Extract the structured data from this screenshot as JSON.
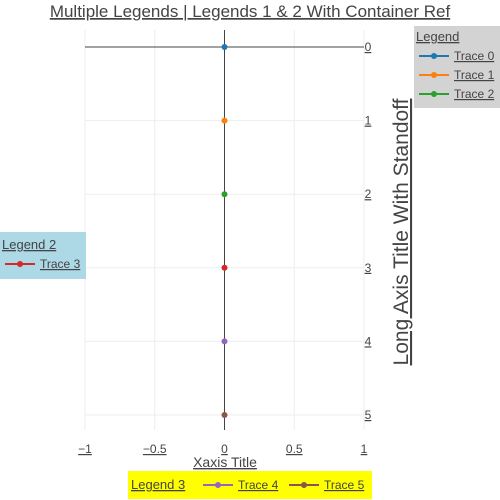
{
  "title": "Multiple Legends | Legends 1 & 2 With Container Ref",
  "chart_data": {
    "type": "scatter",
    "xlabel": "Xaxis Title",
    "ylabel": "Long Axis Title With Standoff",
    "xlim": [
      -1,
      1
    ],
    "ylim": [
      5,
      0
    ],
    "y_reversed": true,
    "y_axis_side": "right",
    "grid": true,
    "x_ticks": [
      {
        "value": -1,
        "label": "−1"
      },
      {
        "value": -0.5,
        "label": "−0.5"
      },
      {
        "value": 0,
        "label": "0"
      },
      {
        "value": 0.5,
        "label": "0.5"
      },
      {
        "value": 1,
        "label": "1"
      }
    ],
    "y_ticks": [
      {
        "value": 0,
        "label": "0"
      },
      {
        "value": 1,
        "label": "1"
      },
      {
        "value": 2,
        "label": "2"
      },
      {
        "value": 3,
        "label": "3"
      },
      {
        "value": 4,
        "label": "4"
      },
      {
        "value": 5,
        "label": "5"
      }
    ],
    "series": [
      {
        "name": "Trace 0",
        "color": "#1f77b4",
        "legend": "legend1",
        "x": [
          0
        ],
        "y": [
          0
        ]
      },
      {
        "name": "Trace 1",
        "color": "#ff7f0e",
        "legend": "legend1",
        "x": [
          0
        ],
        "y": [
          1
        ]
      },
      {
        "name": "Trace 2",
        "color": "#2ca02c",
        "legend": "legend1",
        "x": [
          0
        ],
        "y": [
          2
        ]
      },
      {
        "name": "Trace 3",
        "color": "#d62728",
        "legend": "legend2",
        "x": [
          0
        ],
        "y": [
          3
        ]
      },
      {
        "name": "Trace 4",
        "color": "#9467bd",
        "legend": "legend3",
        "x": [
          0
        ],
        "y": [
          4
        ]
      },
      {
        "name": "Trace 5",
        "color": "#8c564b",
        "legend": "legend3",
        "x": [
          0
        ],
        "y": [
          5
        ]
      }
    ],
    "legends": {
      "legend1": {
        "title": "Legend",
        "bgcolor": "#d3d3d3",
        "placement": "top-right, outside plot"
      },
      "legend2": {
        "title": "Legend 2",
        "bgcolor": "#add8e6",
        "placement": "left, outside plot"
      },
      "legend3": {
        "title": "Legend 3",
        "bgcolor": "#ffff00",
        "placement": "bottom, horizontal"
      }
    }
  }
}
